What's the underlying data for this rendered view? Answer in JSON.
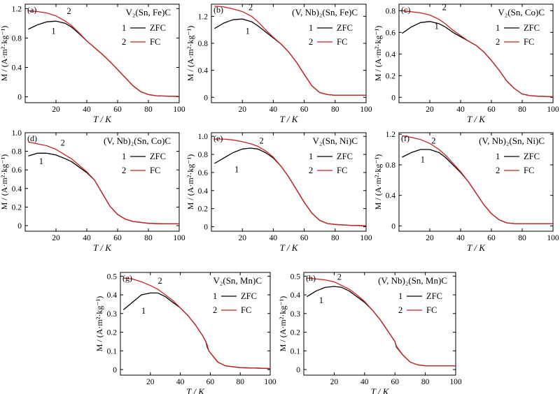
{
  "figure": {
    "colors": {
      "zfc": "#000000",
      "fc": "#cc2222",
      "axis": "#000000"
    }
  },
  "chart_data": [
    {
      "type": "line",
      "panel_label": "(a)",
      "compound": "V₂(Sn, Fe)C",
      "xlabel": "T / K",
      "ylabel": "M / (A·m²·kg⁻¹)",
      "xlim": [
        0,
        100
      ],
      "ylim": [
        -0.08,
        1.26
      ],
      "xticks": [
        "20",
        "40",
        "60",
        "80",
        "100"
      ],
      "yticks": [
        "0",
        "0.4",
        "0.8",
        "1.2"
      ],
      "legend": [
        "1",
        "ZFC",
        "2",
        "FC"
      ],
      "curve_labels": [
        "1",
        "2"
      ],
      "series": [
        {
          "name": "ZFC",
          "x": [
            2,
            8,
            14,
            20,
            26,
            30,
            35,
            40,
            45,
            50,
            55,
            60,
            65,
            70,
            75,
            80,
            85,
            90,
            100
          ],
          "y": [
            0.92,
            0.98,
            1.02,
            1.03,
            1.0,
            0.95,
            0.86,
            0.76,
            0.67,
            0.58,
            0.48,
            0.37,
            0.26,
            0.15,
            0.07,
            0.03,
            0.015,
            0.01,
            0.005
          ]
        },
        {
          "name": "FC",
          "x": [
            2,
            8,
            14,
            20,
            26,
            30,
            35,
            40,
            45,
            50,
            55,
            60,
            65,
            70,
            75,
            80,
            85,
            90,
            100
          ],
          "y": [
            1.17,
            1.16,
            1.14,
            1.1,
            1.03,
            0.97,
            0.87,
            0.76,
            0.67,
            0.58,
            0.48,
            0.37,
            0.26,
            0.15,
            0.07,
            0.03,
            0.015,
            0.01,
            0.005
          ]
        }
      ]
    },
    {
      "type": "line",
      "panel_label": "(b)",
      "compound": "(V, Nb)₂(Sn, Fe)C",
      "xlabel": "T / K",
      "ylabel": "M / (A·m²·kg⁻¹)",
      "xlim": [
        0,
        100
      ],
      "ylim": [
        -0.08,
        1.38
      ],
      "xticks": [
        "20",
        "40",
        "60",
        "80",
        "100"
      ],
      "yticks": [
        "0",
        "0.4",
        "0.8",
        "1.2"
      ],
      "legend": [
        "1",
        "ZFC",
        "2",
        "FC"
      ],
      "curve_labels": [
        "1",
        "2"
      ],
      "series": [
        {
          "name": "ZFC",
          "x": [
            2,
            8,
            14,
            20,
            26,
            30,
            35,
            40,
            45,
            50,
            55,
            60,
            65,
            70,
            75,
            80,
            90,
            100
          ],
          "y": [
            1.02,
            1.1,
            1.15,
            1.16,
            1.12,
            1.06,
            0.97,
            0.88,
            0.79,
            0.67,
            0.52,
            0.34,
            0.17,
            0.07,
            0.04,
            0.03,
            0.03,
            0.03
          ]
        },
        {
          "name": "FC",
          "x": [
            2,
            8,
            14,
            20,
            26,
            30,
            35,
            40,
            45,
            50,
            55,
            60,
            65,
            70,
            75,
            80,
            90,
            100
          ],
          "y": [
            1.35,
            1.34,
            1.31,
            1.27,
            1.2,
            1.12,
            1.0,
            0.89,
            0.79,
            0.67,
            0.52,
            0.34,
            0.17,
            0.07,
            0.04,
            0.03,
            0.03,
            0.03
          ]
        }
      ]
    },
    {
      "type": "line",
      "panel_label": "(c)",
      "compound": "V₂(Sn, Co)C",
      "xlabel": "T / K",
      "ylabel": "M / (A·m²·kg⁻¹)",
      "xlim": [
        0,
        100
      ],
      "ylim": [
        -0.05,
        0.86
      ],
      "xticks": [
        "20",
        "40",
        "60",
        "80",
        "100"
      ],
      "yticks": [
        "0",
        "0.2",
        "0.4",
        "0.6",
        "0.8"
      ],
      "legend": [
        "1",
        "ZFC",
        "2",
        "FC"
      ],
      "curve_labels": [
        "1",
        "2"
      ],
      "series": [
        {
          "name": "ZFC",
          "x": [
            2,
            8,
            14,
            20,
            26,
            30,
            35,
            40,
            45,
            50,
            55,
            60,
            65,
            70,
            75,
            80,
            85,
            90,
            100
          ],
          "y": [
            0.59,
            0.65,
            0.69,
            0.7,
            0.68,
            0.65,
            0.6,
            0.56,
            0.52,
            0.48,
            0.42,
            0.34,
            0.25,
            0.15,
            0.08,
            0.03,
            0.015,
            0.01,
            0.005
          ]
        },
        {
          "name": "FC",
          "x": [
            2,
            8,
            14,
            20,
            26,
            30,
            35,
            40,
            45,
            50,
            55,
            60,
            65,
            70,
            75,
            80,
            85,
            90,
            100
          ],
          "y": [
            0.8,
            0.79,
            0.78,
            0.76,
            0.72,
            0.68,
            0.62,
            0.57,
            0.52,
            0.48,
            0.42,
            0.34,
            0.25,
            0.15,
            0.08,
            0.03,
            0.015,
            0.01,
            0.005
          ]
        }
      ]
    },
    {
      "type": "line",
      "panel_label": "(d)",
      "compound": "(V, Nb)₂(Sn, Co)C",
      "xlabel": "T / K",
      "ylabel": "M / (A·m²·kg⁻¹)",
      "xlim": [
        0,
        100
      ],
      "ylim": [
        -0.06,
        1.0
      ],
      "xticks": [
        "20",
        "40",
        "60",
        "80",
        "100"
      ],
      "yticks": [
        "0",
        "0.2",
        "0.4",
        "0.6",
        "0.8",
        "1.0"
      ],
      "legend": [
        "1",
        "ZFC",
        "2",
        "FC"
      ],
      "curve_labels": [
        "1",
        "2"
      ],
      "series": [
        {
          "name": "ZFC",
          "x": [
            2,
            8,
            14,
            20,
            26,
            30,
            35,
            40,
            45,
            50,
            55,
            60,
            65,
            70,
            80,
            90,
            100
          ],
          "y": [
            0.75,
            0.78,
            0.78,
            0.76,
            0.72,
            0.69,
            0.63,
            0.57,
            0.49,
            0.35,
            0.21,
            0.12,
            0.07,
            0.045,
            0.025,
            0.02,
            0.02
          ]
        },
        {
          "name": "FC",
          "x": [
            2,
            8,
            14,
            20,
            26,
            30,
            35,
            40,
            45,
            50,
            55,
            60,
            65,
            70,
            80,
            90,
            100
          ],
          "y": [
            0.9,
            0.88,
            0.86,
            0.82,
            0.76,
            0.72,
            0.65,
            0.58,
            0.49,
            0.35,
            0.21,
            0.12,
            0.07,
            0.045,
            0.025,
            0.02,
            0.02
          ]
        }
      ]
    },
    {
      "type": "line",
      "panel_label": "(e)",
      "compound": "V₂(Sn, Ni)C",
      "xlabel": "T / K",
      "ylabel": "M / (A·m²·kg⁻¹)",
      "xlim": [
        0,
        100
      ],
      "ylim": [
        -0.05,
        1.04
      ],
      "xticks": [
        "20",
        "40",
        "60",
        "80",
        "100"
      ],
      "yticks": [
        "0",
        "0.2",
        "0.4",
        "0.6",
        "0.8",
        "1.0"
      ],
      "legend": [
        "1",
        "ZFC",
        "2",
        "FC"
      ],
      "curve_labels": [
        "1",
        "2"
      ],
      "series": [
        {
          "name": "ZFC",
          "x": [
            2,
            8,
            14,
            20,
            25,
            30,
            35,
            40,
            45,
            50,
            55,
            60,
            65,
            70,
            75,
            80,
            90,
            100
          ],
          "y": [
            0.7,
            0.76,
            0.82,
            0.86,
            0.87,
            0.86,
            0.82,
            0.76,
            0.67,
            0.55,
            0.41,
            0.27,
            0.15,
            0.07,
            0.035,
            0.025,
            0.015,
            0.01
          ]
        },
        {
          "name": "FC",
          "x": [
            2,
            8,
            14,
            20,
            25,
            30,
            35,
            40,
            45,
            50,
            55,
            60,
            65,
            70,
            75,
            80,
            90,
            100
          ],
          "y": [
            0.97,
            0.97,
            0.96,
            0.94,
            0.92,
            0.89,
            0.84,
            0.77,
            0.67,
            0.55,
            0.41,
            0.27,
            0.15,
            0.07,
            0.035,
            0.025,
            0.015,
            0.01
          ]
        }
      ]
    },
    {
      "type": "line",
      "panel_label": "(f)",
      "compound": "(V, Nb)₂(Sn, Ni)C",
      "xlabel": "T / K",
      "ylabel": "M / (A·m²·kg⁻¹)",
      "xlim": [
        0,
        100
      ],
      "ylim": [
        -0.07,
        1.22
      ],
      "xticks": [
        "20",
        "40",
        "60",
        "80",
        "100"
      ],
      "yticks": [
        "0",
        "0.4",
        "0.8",
        "1.2"
      ],
      "legend": [
        "1",
        "ZFC",
        "2",
        "FC"
      ],
      "curve_labels": [
        "1",
        "2"
      ],
      "series": [
        {
          "name": "ZFC",
          "x": [
            2,
            8,
            14,
            20,
            26,
            30,
            35,
            40,
            45,
            50,
            55,
            60,
            65,
            70,
            75,
            80,
            90,
            100
          ],
          "y": [
            0.9,
            0.96,
            1.0,
            1.0,
            0.96,
            0.9,
            0.8,
            0.7,
            0.58,
            0.43,
            0.28,
            0.16,
            0.08,
            0.04,
            0.03,
            0.03,
            0.03,
            0.03
          ]
        },
        {
          "name": "FC",
          "x": [
            2,
            8,
            14,
            20,
            26,
            30,
            35,
            40,
            45,
            50,
            55,
            60,
            65,
            70,
            75,
            80,
            90,
            100
          ],
          "y": [
            1.18,
            1.16,
            1.13,
            1.08,
            1.0,
            0.93,
            0.82,
            0.71,
            0.58,
            0.43,
            0.28,
            0.16,
            0.08,
            0.04,
            0.03,
            0.03,
            0.03,
            0.03
          ]
        }
      ]
    },
    {
      "type": "line",
      "panel_label": "(g)",
      "compound": "V₂(Sn, Mn)C",
      "xlabel": "T / K",
      "ylabel": "M / (A·m²·kg⁻¹)",
      "xlim": [
        0,
        100
      ],
      "ylim": [
        -0.03,
        0.52
      ],
      "xticks": [
        "20",
        "40",
        "60",
        "80",
        "100"
      ],
      "yticks": [
        "0",
        "0.1",
        "0.2",
        "0.3",
        "0.4",
        "0.5"
      ],
      "legend": [
        "1",
        "ZFC",
        "2",
        "FC"
      ],
      "curve_labels": [
        "1",
        "2"
      ],
      "series": [
        {
          "name": "ZFC",
          "x": [
            2,
            8,
            14,
            20,
            25,
            30,
            35,
            40,
            45,
            50,
            55,
            57,
            58,
            59,
            62,
            65,
            70,
            80,
            90,
            100
          ],
          "y": [
            0.32,
            0.36,
            0.4,
            0.41,
            0.41,
            0.39,
            0.36,
            0.33,
            0.29,
            0.24,
            0.18,
            0.15,
            0.12,
            0.1,
            0.07,
            0.04,
            0.02,
            0.01,
            0.008,
            0.005
          ]
        },
        {
          "name": "FC",
          "x": [
            2,
            8,
            14,
            20,
            25,
            30,
            35,
            40,
            45,
            50,
            55,
            57,
            58,
            59,
            62,
            65,
            70,
            80,
            90,
            100
          ],
          "y": [
            0.49,
            0.485,
            0.47,
            0.45,
            0.43,
            0.4,
            0.37,
            0.33,
            0.29,
            0.24,
            0.18,
            0.15,
            0.13,
            0.1,
            0.07,
            0.04,
            0.02,
            0.01,
            0.008,
            0.005
          ]
        }
      ]
    },
    {
      "type": "line",
      "panel_label": "(h)",
      "compound": "(V, Nb)₂(Sn, Mn)C",
      "xlabel": "T / K",
      "ylabel": "M / (A·m²·kg⁻¹)",
      "xlim": [
        0,
        100
      ],
      "ylim": [
        -0.03,
        0.52
      ],
      "xticks": [
        "20",
        "40",
        "60",
        "80",
        "100"
      ],
      "yticks": [
        "0",
        "0.1",
        "0.2",
        "0.3",
        "0.4",
        "0.5"
      ],
      "legend": [
        "1",
        "ZFC",
        "2",
        "FC"
      ],
      "curve_labels": [
        "1",
        "2"
      ],
      "series": [
        {
          "name": "ZFC",
          "x": [
            2,
            8,
            14,
            20,
            25,
            30,
            35,
            40,
            45,
            50,
            55,
            60,
            61,
            65,
            70,
            75,
            80,
            90,
            100
          ],
          "y": [
            0.39,
            0.42,
            0.44,
            0.445,
            0.44,
            0.42,
            0.39,
            0.36,
            0.32,
            0.27,
            0.21,
            0.15,
            0.12,
            0.08,
            0.04,
            0.025,
            0.02,
            0.02,
            0.02
          ]
        },
        {
          "name": "FC",
          "x": [
            2,
            8,
            14,
            20,
            25,
            30,
            35,
            40,
            45,
            50,
            55,
            60,
            61,
            65,
            70,
            75,
            80,
            90,
            100
          ],
          "y": [
            0.49,
            0.485,
            0.48,
            0.47,
            0.45,
            0.43,
            0.4,
            0.365,
            0.32,
            0.27,
            0.21,
            0.15,
            0.125,
            0.08,
            0.04,
            0.025,
            0.02,
            0.02,
            0.02
          ]
        }
      ]
    }
  ]
}
